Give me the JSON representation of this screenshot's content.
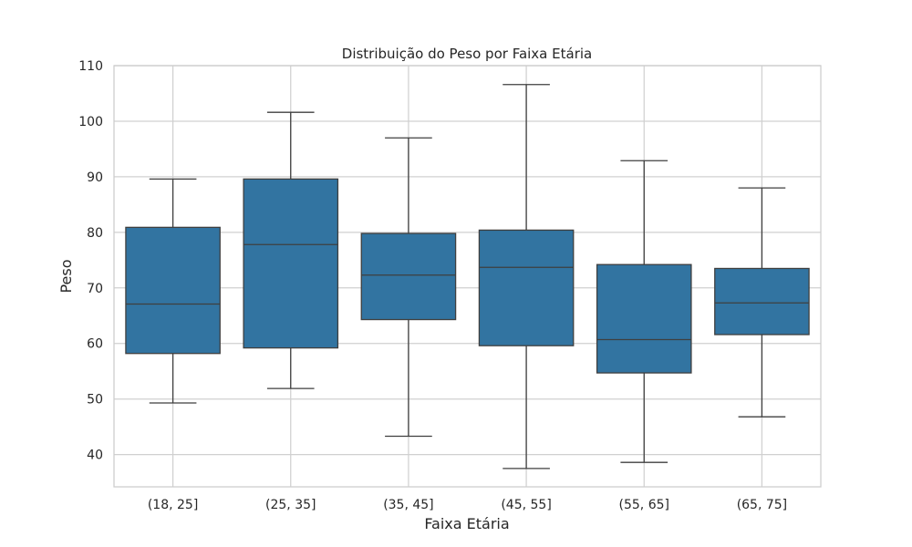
{
  "chart_data": {
    "type": "box",
    "title": "Distribuição do Peso por Faixa Etária",
    "xlabel": "Faixa Etária",
    "ylabel": "Peso",
    "categories": [
      "(18, 25]",
      "(25, 35]",
      "(35, 45]",
      "(45, 55]",
      "(55, 65]",
      "(65, 75]"
    ],
    "boxes": [
      {
        "category": "(18, 25]",
        "whisker_low": 49.3,
        "q1": 58.2,
        "median": 67.1,
        "q3": 80.9,
        "whisker_high": 89.6
      },
      {
        "category": "(25, 35]",
        "whisker_low": 51.9,
        "q1": 59.2,
        "median": 77.8,
        "q3": 89.6,
        "whisker_high": 101.6
      },
      {
        "category": "(35, 45]",
        "whisker_low": 43.3,
        "q1": 64.3,
        "median": 72.3,
        "q3": 79.8,
        "whisker_high": 97.0
      },
      {
        "category": "(45, 55]",
        "whisker_low": 37.5,
        "q1": 59.6,
        "median": 73.7,
        "q3": 80.4,
        "whisker_high": 106.6
      },
      {
        "category": "(55, 65]",
        "whisker_low": 38.6,
        "q1": 54.7,
        "median": 60.7,
        "q3": 74.2,
        "whisker_high": 92.9
      },
      {
        "category": "(65, 75]",
        "whisker_low": 46.8,
        "q1": 61.6,
        "median": 67.3,
        "q3": 73.5,
        "whisker_high": 88.0
      }
    ],
    "yticks": [
      40,
      50,
      60,
      70,
      80,
      90,
      100,
      110
    ],
    "ylim": [
      34.2,
      110
    ],
    "grid": true,
    "colors": {
      "box_fill": "#3274a1",
      "line": "#3f3f3f",
      "grid": "#d0d0d0",
      "frame": "#cccccc"
    }
  }
}
